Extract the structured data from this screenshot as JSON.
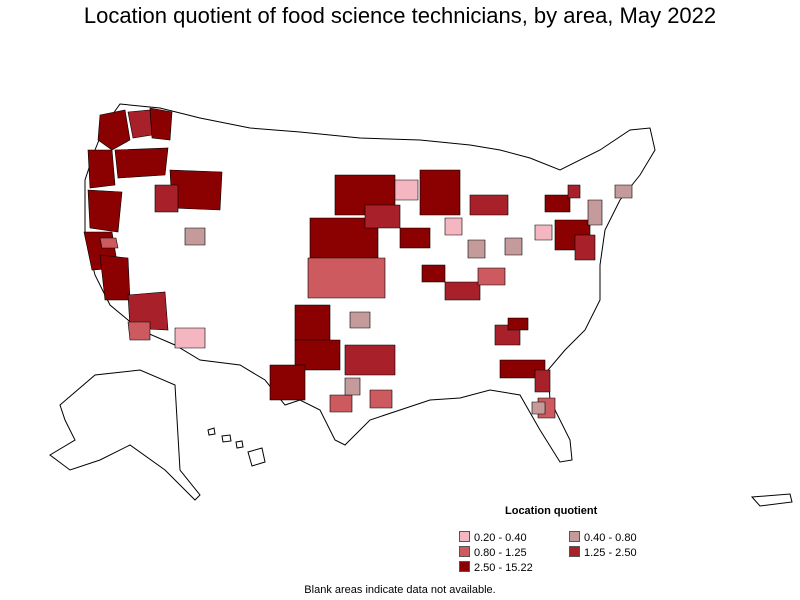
{
  "title": "Location quotient of food science technicians, by area, May 2022",
  "legend": {
    "title": "Location quotient",
    "items": [
      {
        "label": "0.20 - 0.40",
        "color": "#f4b6c0"
      },
      {
        "label": "0.40 - 0.80",
        "color": "#c49a9a"
      },
      {
        "label": "0.80 - 1.25",
        "color": "#cc5a5e"
      },
      {
        "label": "1.25 - 2.50",
        "color": "#a8202a"
      },
      {
        "label": "2.50 - 15.22",
        "color": "#8b0000"
      }
    ]
  },
  "note": "Blank areas indicate data not available.",
  "colors": {
    "blank": "#ffffff",
    "border": "#000000"
  }
}
